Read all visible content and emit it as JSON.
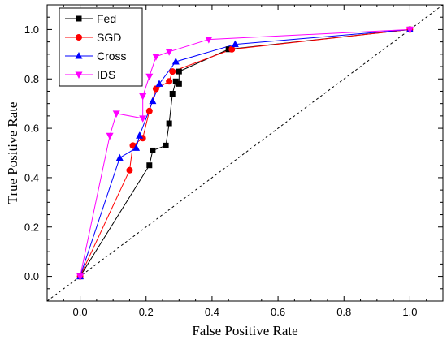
{
  "chart_data": {
    "type": "line",
    "title": "",
    "xlabel": "False Positive Rate",
    "ylabel": "True Positive Rate",
    "xlim": [
      -0.1,
      1.1
    ],
    "ylim": [
      -0.1,
      1.1
    ],
    "xticks": [
      "0.0",
      "0.2",
      "0.4",
      "0.6",
      "0.8",
      "1.0"
    ],
    "yticks": [
      "0.0",
      "0.2",
      "0.4",
      "0.6",
      "0.8",
      "1.0"
    ],
    "grid": false,
    "legend_position": "top-left",
    "reference_line": {
      "style": "dashed",
      "from": [
        0,
        0
      ],
      "to": [
        1,
        1
      ]
    },
    "series": [
      {
        "name": "Fed",
        "marker": "square",
        "color": "#000000",
        "points": [
          [
            0,
            0
          ],
          [
            0.21,
            0.45
          ],
          [
            0.22,
            0.51
          ],
          [
            0.26,
            0.53
          ],
          [
            0.27,
            0.62
          ],
          [
            0.28,
            0.74
          ],
          [
            0.29,
            0.79
          ],
          [
            0.3,
            0.78
          ],
          [
            0.3,
            0.83
          ],
          [
            0.45,
            0.92
          ],
          [
            1.0,
            1.0
          ]
        ]
      },
      {
        "name": "SGD",
        "marker": "circle",
        "color": "#ff0000",
        "points": [
          [
            0,
            0
          ],
          [
            0.15,
            0.43
          ],
          [
            0.16,
            0.53
          ],
          [
            0.19,
            0.56
          ],
          [
            0.21,
            0.67
          ],
          [
            0.23,
            0.76
          ],
          [
            0.27,
            0.79
          ],
          [
            0.28,
            0.83
          ],
          [
            0.46,
            0.92
          ],
          [
            1.0,
            1.0
          ]
        ]
      },
      {
        "name": "Cross",
        "marker": "triangle-up",
        "color": "#0000ff",
        "points": [
          [
            0,
            0
          ],
          [
            0.12,
            0.48
          ],
          [
            0.17,
            0.52
          ],
          [
            0.18,
            0.57
          ],
          [
            0.22,
            0.71
          ],
          [
            0.24,
            0.78
          ],
          [
            0.29,
            0.87
          ],
          [
            0.47,
            0.94
          ],
          [
            1.0,
            1.0
          ]
        ]
      },
      {
        "name": "IDS",
        "marker": "triangle-down",
        "color": "#ff00ff",
        "points": [
          [
            0,
            0
          ],
          [
            0.09,
            0.57
          ],
          [
            0.11,
            0.66
          ],
          [
            0.19,
            0.64
          ],
          [
            0.19,
            0.73
          ],
          [
            0.21,
            0.81
          ],
          [
            0.23,
            0.89
          ],
          [
            0.27,
            0.91
          ],
          [
            0.39,
            0.96
          ],
          [
            1.0,
            1.0
          ]
        ]
      }
    ]
  }
}
